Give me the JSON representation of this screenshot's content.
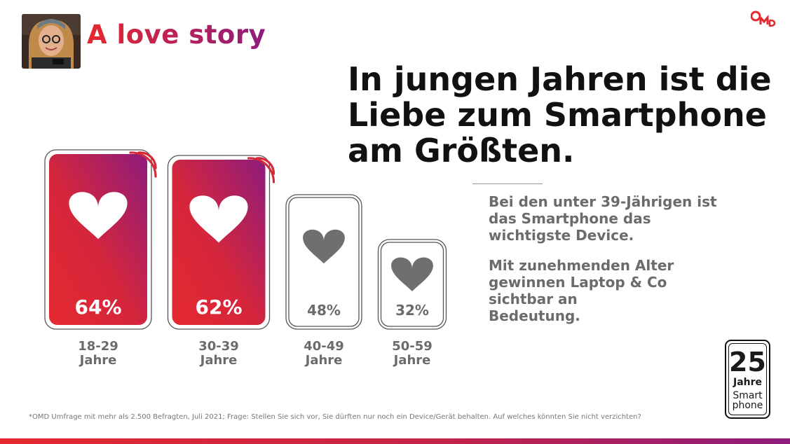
{
  "brand_title": "A love story",
  "headline": [
    "In jungen Jahren ist die",
    "Liebe zum Smartphone",
    "am Größten."
  ],
  "body_paragraph_1": [
    "Bei den unter 39-Jährigen ist",
    "das Smartphone das",
    "wichtigste Device."
  ],
  "body_paragraph_2": [
    "Mit zunehmenden Alter",
    "gewinnen Laptop & Co",
    "sichtbar an",
    "Bedeutung."
  ],
  "footnote": "*OMD Umfrage mit mehr als 2.500 Befragten, Juli 2021; Frage: Stellen Sie sich vor, Sie dürften nur noch ein Device/Gerät behalten. Auf welches könnten Sie nicht verzichten?",
  "badge": {
    "number": "25",
    "line1": "Jahre",
    "line2": "Smart",
    "line3": "phone"
  },
  "colors": {
    "accent_red": "#e5292f",
    "accent_purple": "#8e1c7c",
    "heart_grey": "#6f6f6f",
    "text_grey": "#6b6b6b"
  },
  "chart_data": {
    "type": "bar",
    "categories": [
      "18-29\nJahre",
      "30-39\nJahre",
      "40-49\nJahre",
      "50-59\nJahre"
    ],
    "values": [
      64,
      62,
      48,
      32
    ],
    "value_labels": [
      "64%",
      "62%",
      "48%",
      "32%"
    ],
    "highlighted": [
      true,
      true,
      false,
      false
    ],
    "icons": [
      "smartphone-heart-icon",
      "smartphone-heart-icon",
      "smartphone-heart-icon",
      "smartphone-heart-icon"
    ]
  }
}
